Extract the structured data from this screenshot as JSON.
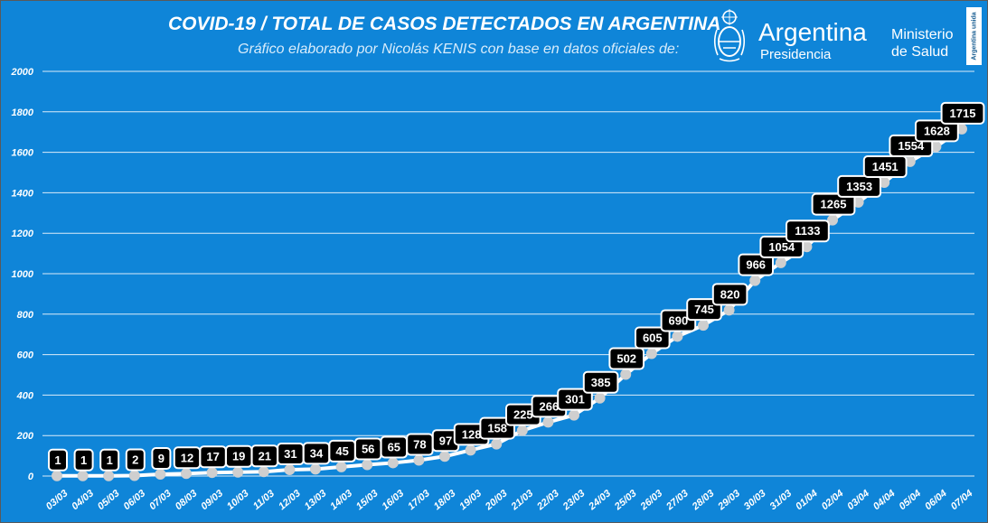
{
  "header": {
    "title": "COVID-19  /  TOTAL DE CASOS DETECTADOS EN ARGENTINA",
    "subtitle": "Gráfico elaborado por Nicolás KENIS con base en datos oficiales de:",
    "brand_name": "Argentina",
    "brand_sub": "Presidencia",
    "ministry_line1": "Ministerio",
    "ministry_line2": "de Salud",
    "badge_text": "Argentina unida",
    "emblem_icon": "argentina-coat-of-arms-icon"
  },
  "colors": {
    "background": "#0f85d8",
    "line": "#ffffff",
    "marker": "#cfcfcf",
    "label_bg": "#000000",
    "label_text": "#ffffff",
    "grid": "#ffffff"
  },
  "chart_data": {
    "type": "line",
    "title": "COVID-19  /  TOTAL DE CASOS DETECTADOS EN ARGENTINA",
    "xlabel": "",
    "ylabel": "",
    "ylim": [
      0,
      2000
    ],
    "yticks": [
      0,
      200,
      400,
      600,
      800,
      1000,
      1200,
      1400,
      1600,
      1800,
      2000
    ],
    "grid": true,
    "legend": "none",
    "categories": [
      "03/03",
      "04/03",
      "05/03",
      "06/03",
      "07/03",
      "08/03",
      "09/03",
      "10/03",
      "11/03",
      "12/03",
      "13/03",
      "14/03",
      "15/03",
      "16/03",
      "17/03",
      "18/03",
      "19/03",
      "20/03",
      "21/03",
      "22/03",
      "23/03",
      "24/03",
      "25/03",
      "26/03",
      "27/03",
      "28/03",
      "29/03",
      "30/03",
      "31/03",
      "01/04",
      "02/04",
      "03/04",
      "04/04",
      "05/04",
      "06/04",
      "07/04"
    ],
    "values": [
      1,
      1,
      1,
      2,
      9,
      12,
      17,
      19,
      21,
      31,
      34,
      45,
      56,
      65,
      78,
      97,
      128,
      158,
      225,
      266,
      301,
      385,
      502,
      605,
      690,
      745,
      820,
      966,
      1054,
      1133,
      1265,
      1353,
      1451,
      1554,
      1628,
      1715
    ]
  }
}
